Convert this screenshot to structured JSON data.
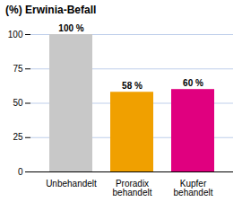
{
  "chart_data": {
    "type": "bar",
    "title": "(%) Erwinia-Befall",
    "categories": [
      "Unbehandelt",
      "Proradix\nbehandelt",
      "Kupfer\nbehandelt"
    ],
    "values": [
      100,
      58,
      60
    ],
    "value_labels": [
      "100 %",
      "58 %",
      "60 %"
    ],
    "data_labels": true,
    "colors": [
      "#c8c8c8",
      "#f0a000",
      "#e0007f"
    ],
    "ylim": [
      0,
      100
    ],
    "yticks": [
      0,
      25,
      50,
      75,
      100
    ],
    "grid": true
  }
}
